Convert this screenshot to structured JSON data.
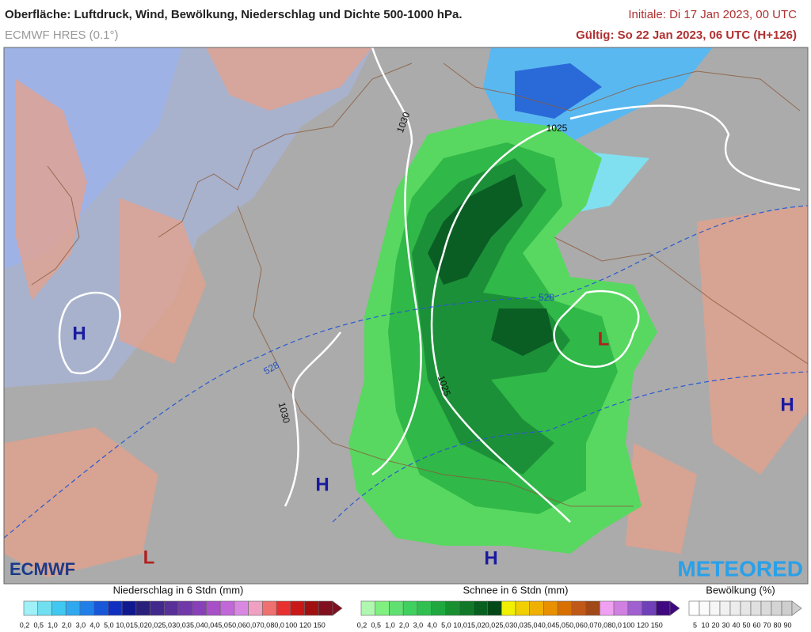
{
  "header": {
    "title": "Oberfläche: Luftdruck, Wind, Bewölkung, Niederschlag und Dichte 500-1000 hPa.",
    "model": "ECMWF HRES (0.1°)",
    "initial": "Initiale: Di 17 Jan 2023, 00 UTC",
    "valid": "Gültig: So 22 Jan 2023, 06 UTC (H+126)"
  },
  "map": {
    "pressure_centers": [
      "H",
      "L",
      "H",
      "H",
      "L",
      "H"
    ],
    "isobar_labels": [
      "1030",
      "1025",
      "1030",
      "1025"
    ],
    "thickness_labels": [
      "528",
      "528"
    ]
  },
  "logos": {
    "left": "ECMWF",
    "right": "METEORED"
  },
  "legends": [
    {
      "title": "Niederschlag in 6 Stdn (mm)",
      "labels": [
        "0,2",
        "0,5",
        "1,0",
        "2,0",
        "3,0",
        "4,0",
        "5,0",
        "10,0",
        "15,0",
        "20,0",
        "25,0",
        "30,0",
        "35,0",
        "40,0",
        "45,0",
        "50,0",
        "60,0",
        "70,0",
        "80,0",
        "100",
        "120",
        "150"
      ],
      "colors": [
        "#a0f0f8",
        "#70e0f0",
        "#40c8f0",
        "#30a8f0",
        "#2080e8",
        "#1858d8",
        "#1030c0",
        "#101890",
        "#28207a",
        "#40288c",
        "#583098",
        "#7038a8",
        "#8840b8",
        "#a850c8",
        "#c068d8",
        "#d888e0",
        "#f0a0c0",
        "#f07070",
        "#e83030",
        "#c81818",
        "#a01010",
        "#801020"
      ]
    },
    {
      "title": "Schnee in 6 Stdn (mm)",
      "labels": [
        "0,2",
        "0,5",
        "1,0",
        "2,0",
        "3,0",
        "4,0",
        "5,0",
        "10,0",
        "15,0",
        "20,0",
        "25,0",
        "30,0",
        "35,0",
        "40,0",
        "45,0",
        "50,0",
        "60,0",
        "70,0",
        "80,0",
        "100",
        "120",
        "150"
      ],
      "colors": [
        "#b0f8b0",
        "#80f080",
        "#60e070",
        "#40d060",
        "#30c050",
        "#20a840",
        "#189030",
        "#107828",
        "#086020",
        "#044818",
        "#f0f000",
        "#f0d000",
        "#f0b000",
        "#e89000",
        "#d87000",
        "#c05818",
        "#a04818",
        "#f0a0f0",
        "#d080e0",
        "#a060d0",
        "#7040b8",
        "#400880"
      ]
    },
    {
      "title": "Bewölkung (%)",
      "labels": [
        "5",
        "10",
        "20",
        "30",
        "40",
        "50",
        "60",
        "70",
        "80",
        "90"
      ],
      "colors": [
        "#ffffff",
        "#fbfbfb",
        "#f6f6f6",
        "#f1f1f1",
        "#ececec",
        "#e6e6e6",
        "#e0e0e0",
        "#dadada",
        "#d4d4d4",
        "#cecece"
      ]
    }
  ]
}
